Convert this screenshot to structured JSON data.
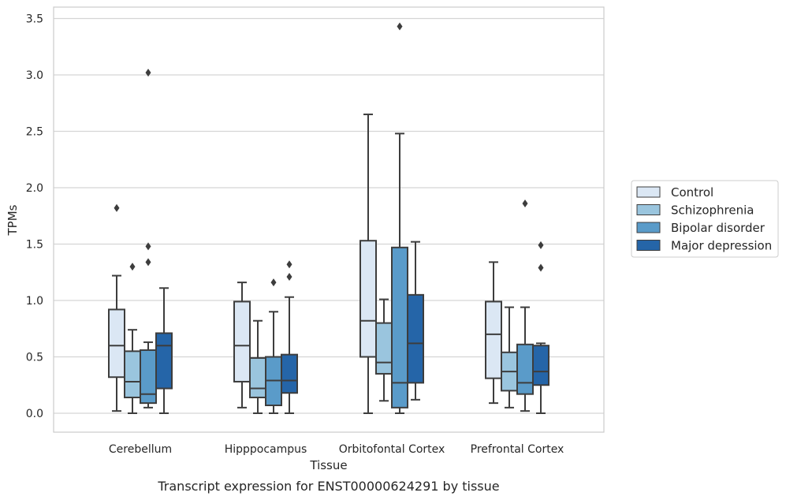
{
  "chart_data": {
    "type": "box",
    "xlabel": "Tissue",
    "ylabel": "TPMs",
    "caption": "Transcript expression for ENST00000624291 by tissue",
    "ylim": [
      -0.17,
      3.6
    ],
    "yticks": [
      "0.0",
      "0.5",
      "1.0",
      "1.5",
      "2.0",
      "2.5",
      "3.0",
      "3.5"
    ],
    "grid": "horizontal",
    "legend_position": "right",
    "categories": [
      "Cerebellum",
      "Hipppocampus",
      "Orbitofontal Cortex",
      "Prefrontal Cortex"
    ],
    "series": [
      {
        "name": "Control",
        "color": "#dbe7f4",
        "boxes": [
          {
            "whislo": 0.02,
            "q1": 0.32,
            "med": 0.6,
            "q3": 0.92,
            "whishi": 1.22,
            "fliers": [
              1.82
            ]
          },
          {
            "whislo": 0.05,
            "q1": 0.28,
            "med": 0.6,
            "q3": 0.99,
            "whishi": 1.16,
            "fliers": []
          },
          {
            "whislo": 0.0,
            "q1": 0.5,
            "med": 0.82,
            "q3": 1.53,
            "whishi": 2.65,
            "fliers": []
          },
          {
            "whislo": 0.09,
            "q1": 0.31,
            "med": 0.7,
            "q3": 0.99,
            "whishi": 1.34,
            "fliers": []
          }
        ]
      },
      {
        "name": "Schizophrenia",
        "color": "#9ac5de",
        "boxes": [
          {
            "whislo": 0.0,
            "q1": 0.14,
            "med": 0.28,
            "q3": 0.55,
            "whishi": 0.74,
            "fliers": [
              1.3
            ]
          },
          {
            "whislo": 0.0,
            "q1": 0.14,
            "med": 0.22,
            "q3": 0.49,
            "whishi": 0.82,
            "fliers": []
          },
          {
            "whislo": 0.11,
            "q1": 0.35,
            "med": 0.45,
            "q3": 0.8,
            "whishi": 1.01,
            "fliers": []
          },
          {
            "whislo": 0.05,
            "q1": 0.2,
            "med": 0.37,
            "q3": 0.54,
            "whishi": 0.94,
            "fliers": []
          }
        ]
      },
      {
        "name": "Bipolar disorder",
        "color": "#5a9bc9",
        "boxes": [
          {
            "whislo": 0.05,
            "q1": 0.09,
            "med": 0.17,
            "q3": 0.56,
            "whishi": 0.63,
            "fliers": [
              3.02,
              1.48,
              1.34
            ]
          },
          {
            "whislo": 0.0,
            "q1": 0.07,
            "med": 0.29,
            "q3": 0.5,
            "whishi": 0.9,
            "fliers": [
              1.16
            ]
          },
          {
            "whislo": 0.0,
            "q1": 0.05,
            "med": 0.27,
            "q3": 1.47,
            "whishi": 2.48,
            "fliers": [
              3.43
            ]
          },
          {
            "whislo": 0.02,
            "q1": 0.17,
            "med": 0.27,
            "q3": 0.61,
            "whishi": 0.94,
            "fliers": [
              1.86
            ]
          }
        ]
      },
      {
        "name": "Major depression",
        "color": "#2565a8",
        "boxes": [
          {
            "whislo": 0.0,
            "q1": 0.22,
            "med": 0.6,
            "q3": 0.71,
            "whishi": 1.11,
            "fliers": []
          },
          {
            "whislo": 0.0,
            "q1": 0.18,
            "med": 0.29,
            "q3": 0.52,
            "whishi": 1.03,
            "fliers": [
              1.32,
              1.21
            ]
          },
          {
            "whislo": 0.12,
            "q1": 0.27,
            "med": 0.62,
            "q3": 1.05,
            "whishi": 1.52,
            "fliers": []
          },
          {
            "whislo": 0.0,
            "q1": 0.25,
            "med": 0.37,
            "q3": 0.6,
            "whishi": 0.62,
            "fliers": [
              1.49,
              1.29
            ]
          }
        ]
      }
    ]
  }
}
